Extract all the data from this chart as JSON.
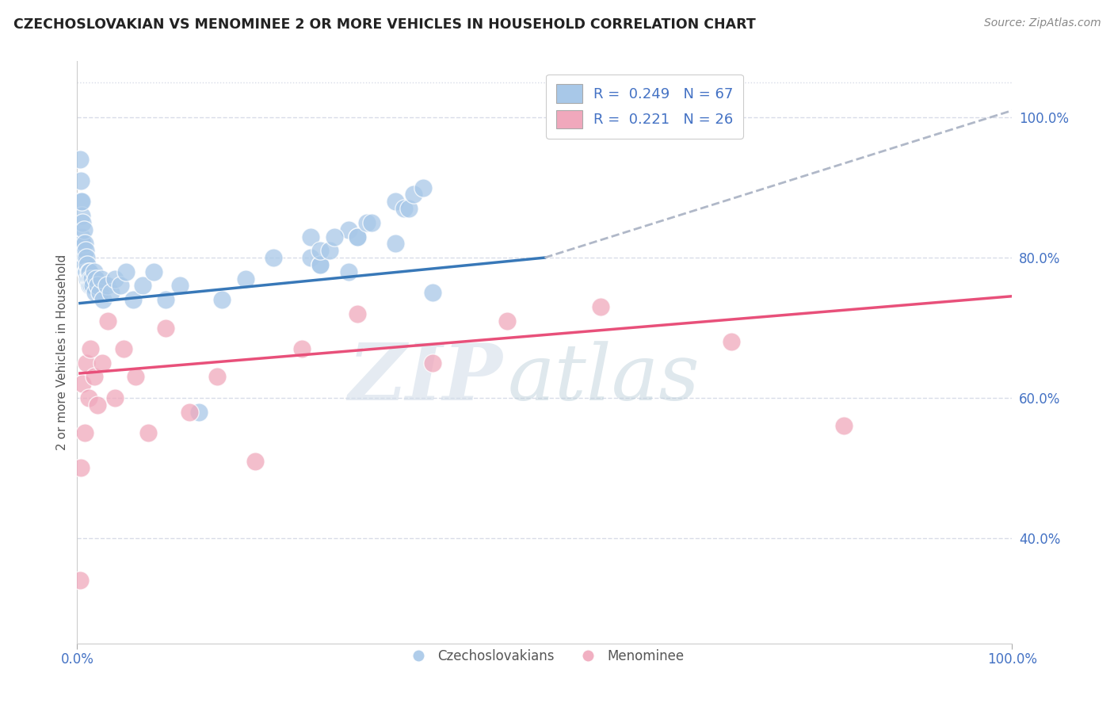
{
  "title": "CZECHOSLOVAKIAN VS MENOMINEE 2 OR MORE VEHICLES IN HOUSEHOLD CORRELATION CHART",
  "source": "Source: ZipAtlas.com",
  "ylabel": "2 or more Vehicles in Household",
  "xmin": 0.0,
  "xmax": 1.0,
  "ymin": 0.25,
  "ymax": 1.08,
  "yticks": [
    0.4,
    0.6,
    0.8,
    1.0
  ],
  "ytick_labels": [
    "40.0%",
    "60.0%",
    "80.0%",
    "100.0%"
  ],
  "legend_r1": "R =  0.249",
  "legend_n1": "N = 67",
  "legend_r2": "R =  0.221",
  "legend_n2": "N = 26",
  "legend_label1": "Czechoslovakians",
  "legend_label2": "Menominee",
  "blue_color": "#a8c8e8",
  "pink_color": "#f0a8bc",
  "blue_edge": "#7aaed0",
  "pink_edge": "#e080a0",
  "line_blue": "#3878b8",
  "line_pink": "#e8507a",
  "dashed_color": "#b0b8c8",
  "blue_scatter_x": [
    0.003,
    0.004,
    0.004,
    0.005,
    0.005,
    0.005,
    0.006,
    0.006,
    0.007,
    0.007,
    0.008,
    0.008,
    0.009,
    0.009,
    0.01,
    0.01,
    0.011,
    0.011,
    0.012,
    0.012,
    0.013,
    0.013,
    0.014,
    0.015,
    0.016,
    0.017,
    0.018,
    0.019,
    0.02,
    0.022,
    0.024,
    0.026,
    0.028,
    0.032,
    0.036,
    0.04,
    0.046,
    0.052,
    0.06,
    0.07,
    0.082,
    0.095,
    0.11,
    0.13,
    0.155,
    0.18,
    0.21,
    0.25,
    0.29,
    0.34,
    0.25,
    0.29,
    0.34,
    0.38,
    0.26,
    0.3,
    0.35,
    0.26,
    0.3,
    0.355,
    0.26,
    0.31,
    0.36,
    0.27,
    0.315,
    0.37,
    0.275
  ],
  "blue_scatter_y": [
    0.94,
    0.91,
    0.88,
    0.86,
    0.83,
    0.88,
    0.85,
    0.82,
    0.84,
    0.8,
    0.82,
    0.79,
    0.81,
    0.78,
    0.8,
    0.78,
    0.79,
    0.77,
    0.78,
    0.77,
    0.78,
    0.76,
    0.77,
    0.76,
    0.77,
    0.76,
    0.78,
    0.75,
    0.77,
    0.76,
    0.75,
    0.77,
    0.74,
    0.76,
    0.75,
    0.77,
    0.76,
    0.78,
    0.74,
    0.76,
    0.78,
    0.74,
    0.76,
    0.58,
    0.74,
    0.77,
    0.8,
    0.83,
    0.78,
    0.82,
    0.8,
    0.84,
    0.88,
    0.75,
    0.79,
    0.83,
    0.87,
    0.79,
    0.83,
    0.87,
    0.81,
    0.85,
    0.89,
    0.81,
    0.85,
    0.9,
    0.83
  ],
  "pink_scatter_x": [
    0.003,
    0.004,
    0.006,
    0.008,
    0.01,
    0.012,
    0.014,
    0.018,
    0.022,
    0.027,
    0.033,
    0.04,
    0.05,
    0.062,
    0.076,
    0.095,
    0.12,
    0.15,
    0.19,
    0.24,
    0.3,
    0.38,
    0.46,
    0.56,
    0.7,
    0.82
  ],
  "pink_scatter_y": [
    0.34,
    0.5,
    0.62,
    0.55,
    0.65,
    0.6,
    0.67,
    0.63,
    0.59,
    0.65,
    0.71,
    0.6,
    0.67,
    0.63,
    0.55,
    0.7,
    0.58,
    0.63,
    0.51,
    0.67,
    0.72,
    0.65,
    0.71,
    0.73,
    0.68,
    0.56
  ],
  "blue_line_x0": 0.003,
  "blue_line_x1": 0.5,
  "blue_line_y0": 0.735,
  "blue_line_y1": 0.8,
  "dashed_line_x0": 0.5,
  "dashed_line_x1": 1.0,
  "dashed_line_y0": 0.8,
  "dashed_line_y1": 1.01,
  "pink_line_x0": 0.003,
  "pink_line_x1": 1.0,
  "pink_line_y0": 0.635,
  "pink_line_y1": 0.745,
  "watermark_zip": "ZIP",
  "watermark_atlas": "atlas",
  "background_color": "#ffffff",
  "grid_color": "#d8dce8",
  "title_color": "#222222",
  "source_color": "#888888",
  "axis_label_color": "#4472c4",
  "ylabel_color": "#555555"
}
